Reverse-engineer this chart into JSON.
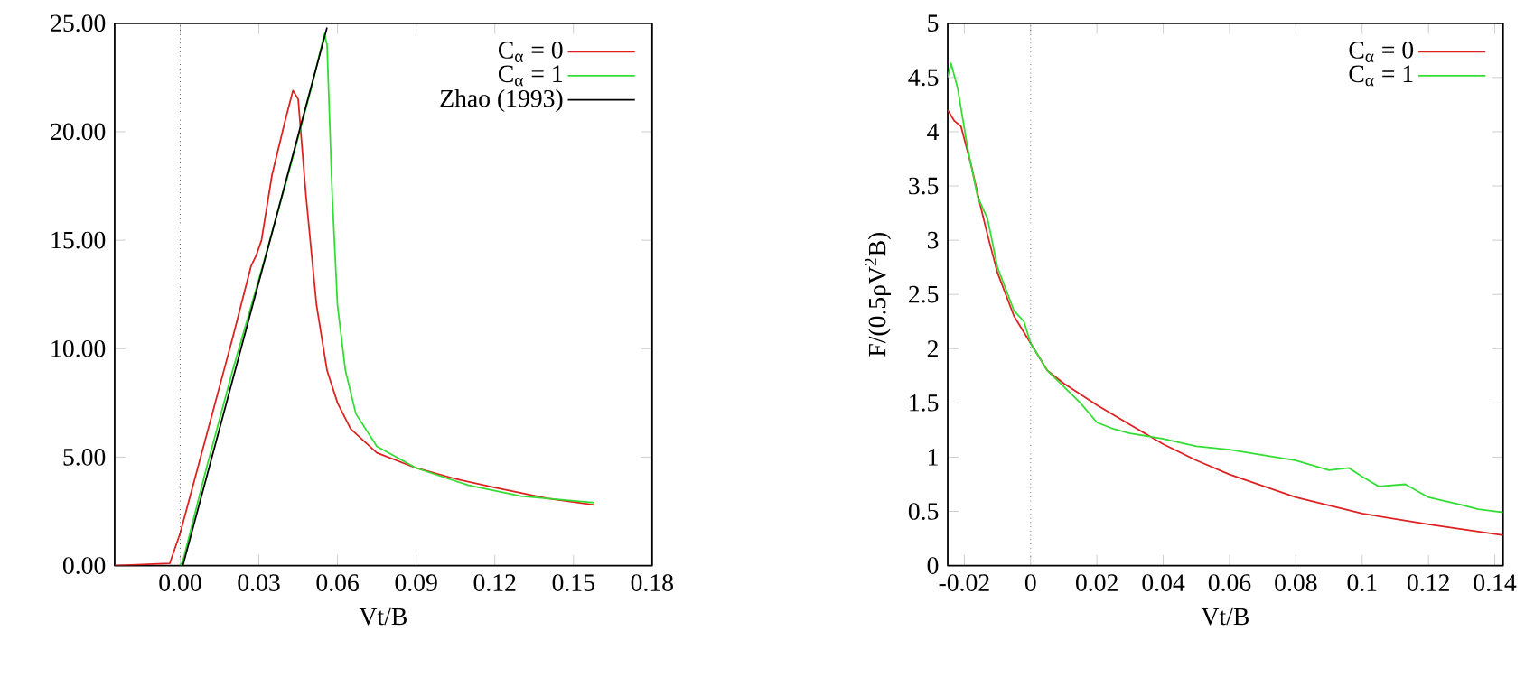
{
  "chart_data": [
    {
      "type": "line",
      "xlabel": "Vt/B",
      "xlim": [
        -0.025,
        0.18
      ],
      "ylim": [
        0,
        25
      ],
      "xticks": [
        {
          "value": 0,
          "label": "0.00"
        },
        {
          "value": 0.03,
          "label": "0.03"
        },
        {
          "value": 0.06,
          "label": "0.06"
        },
        {
          "value": 0.09,
          "label": "0.09"
        },
        {
          "value": 0.12,
          "label": "0.12"
        },
        {
          "value": 0.15,
          "label": "0.15"
        },
        {
          "value": 0.18,
          "label": "0.18"
        }
      ],
      "yticks": [
        {
          "value": 0,
          "label": "0.00"
        },
        {
          "value": 5,
          "label": "5.00"
        },
        {
          "value": 10,
          "label": "10.00"
        },
        {
          "value": 15,
          "label": "15.00"
        },
        {
          "value": 20,
          "label": "20.00"
        },
        {
          "value": 25,
          "label": "25.00"
        }
      ],
      "legend": "top right",
      "ref_lines": [
        {
          "axis": "x",
          "value": 0,
          "line_style": "dotted"
        }
      ],
      "series": [
        {
          "name": "C$_{α}$ = 0",
          "color": "#dd2222",
          "x": [
            -0.025,
            -0.004,
            0,
            0.01,
            0.02,
            0.027,
            0.029,
            0.031,
            0.035,
            0.04,
            0.043,
            0.045,
            0.048,
            0.052,
            0.056,
            0.06,
            0.065,
            0.075,
            0.09,
            0.105,
            0.12,
            0.14,
            0.158
          ],
          "values": [
            0,
            0.1,
            1.5,
            6,
            10.5,
            13.8,
            14.3,
            15,
            18,
            20.5,
            21.9,
            21.5,
            17,
            12,
            9,
            7.5,
            6.3,
            5.2,
            4.5,
            4,
            3.6,
            3.1,
            2.8
          ]
        },
        {
          "name": "C$_{α}$ = 1",
          "color": "#33dd33",
          "x": [
            0,
            0.001,
            0.01,
            0.02,
            0.03,
            0.04,
            0.05,
            0.055,
            0.056,
            0.058,
            0.06,
            0.063,
            0.067,
            0.075,
            0.09,
            0.11,
            0.13,
            0.158
          ],
          "values": [
            0,
            0.2,
            4.5,
            9,
            13.2,
            17.5,
            22,
            24.5,
            24,
            17,
            12,
            9,
            7,
            5.5,
            4.5,
            3.7,
            3.2,
            2.9
          ]
        },
        {
          "name": "Zhao (1993)",
          "color": "#000000",
          "x": [
            0.001,
            0.056
          ],
          "values": [
            0,
            24.8
          ]
        }
      ]
    },
    {
      "type": "line",
      "xlabel": "Vt/B",
      "ylabel": "F/(0.5ρV$^{2}$B)",
      "xlim": [
        -0.025,
        0.1425
      ],
      "ylim": [
        0,
        5
      ],
      "xticks": [
        -0.02,
        0,
        0.02,
        0.04,
        0.06,
        0.08,
        0.1,
        0.12,
        0.14
      ],
      "yticks": [
        0,
        0.5,
        1,
        1.5,
        2,
        2.5,
        3,
        3.5,
        4,
        4.5,
        5
      ],
      "legend": "top right",
      "ref_lines": [
        {
          "axis": "x",
          "value": 0,
          "line_style": "dotted"
        }
      ],
      "series": [
        {
          "name": "C$_{α}$ = 0",
          "color": "#dd2222",
          "x": [
            -0.025,
            -0.023,
            -0.021,
            -0.018,
            -0.015,
            -0.013,
            -0.01,
            -0.005,
            0,
            0.005,
            0.01,
            0.02,
            0.03,
            0.04,
            0.05,
            0.06,
            0.08,
            0.1,
            0.12,
            0.1425
          ],
          "values": [
            4.2,
            4.1,
            4.05,
            3.7,
            3.3,
            3.05,
            2.7,
            2.3,
            2.05,
            1.8,
            1.68,
            1.48,
            1.3,
            1.12,
            0.97,
            0.84,
            0.63,
            0.48,
            0.38,
            0.28
          ]
        },
        {
          "name": "C$_{α}$ = 1",
          "color": "#33dd33",
          "x": [
            -0.025,
            -0.024,
            -0.022,
            -0.019,
            -0.016,
            -0.013,
            -0.01,
            -0.005,
            -0.002,
            0,
            0.005,
            0.01,
            0.015,
            0.02,
            0.025,
            0.03,
            0.04,
            0.05,
            0.06,
            0.07,
            0.08,
            0.09,
            0.096,
            0.1,
            0.105,
            0.113,
            0.12,
            0.13,
            0.135,
            0.1425
          ],
          "values": [
            4.5,
            4.63,
            4.4,
            3.85,
            3.4,
            3.2,
            2.75,
            2.35,
            2.25,
            2.05,
            1.8,
            1.65,
            1.5,
            1.32,
            1.26,
            1.22,
            1.17,
            1.1,
            1.07,
            1.02,
            0.97,
            0.88,
            0.9,
            0.82,
            0.73,
            0.75,
            0.63,
            0.56,
            0.52,
            0.49
          ]
        }
      ]
    }
  ]
}
